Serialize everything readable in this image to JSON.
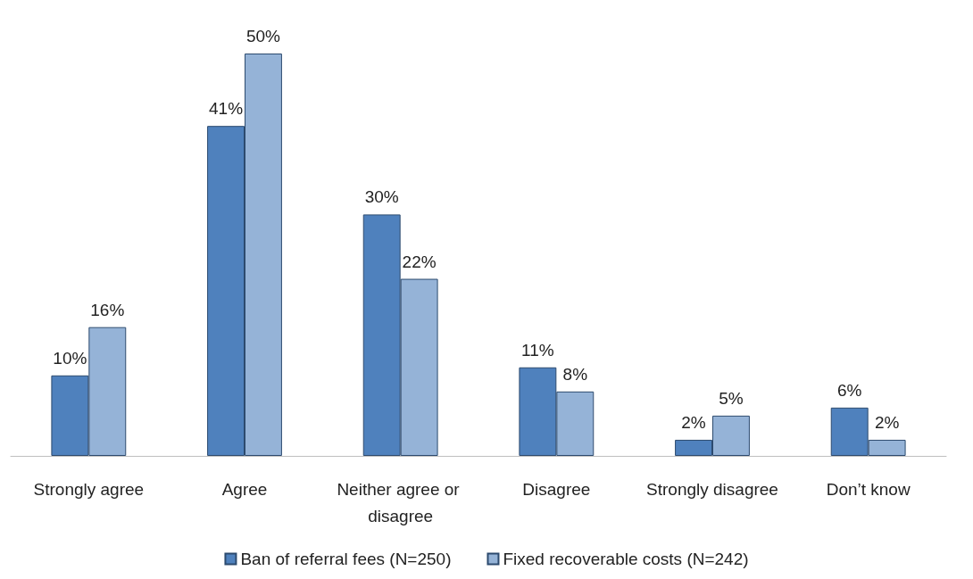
{
  "chart_data": {
    "type": "bar",
    "categories": [
      "Strongly agree",
      "Agree",
      "Neither agree or disagree",
      "Disagree",
      "Strongly disagree",
      "Don’t know"
    ],
    "series": [
      {
        "name": "Ban of referral fees (N=250)",
        "color": "#4f81bd",
        "values": [
          10,
          41,
          30,
          11,
          2,
          6
        ],
        "value_labels": [
          "10%",
          "41%",
          "30%",
          "11%",
          "2%",
          "6%"
        ]
      },
      {
        "name": "Fixed recoverable costs (N=242)",
        "color": "#95b3d7",
        "values": [
          16,
          50,
          22,
          8,
          5,
          2
        ],
        "value_labels": [
          "16%",
          "50%",
          "22%",
          "8%",
          "5%",
          "2%"
        ]
      }
    ],
    "legend": "bottom"
  }
}
